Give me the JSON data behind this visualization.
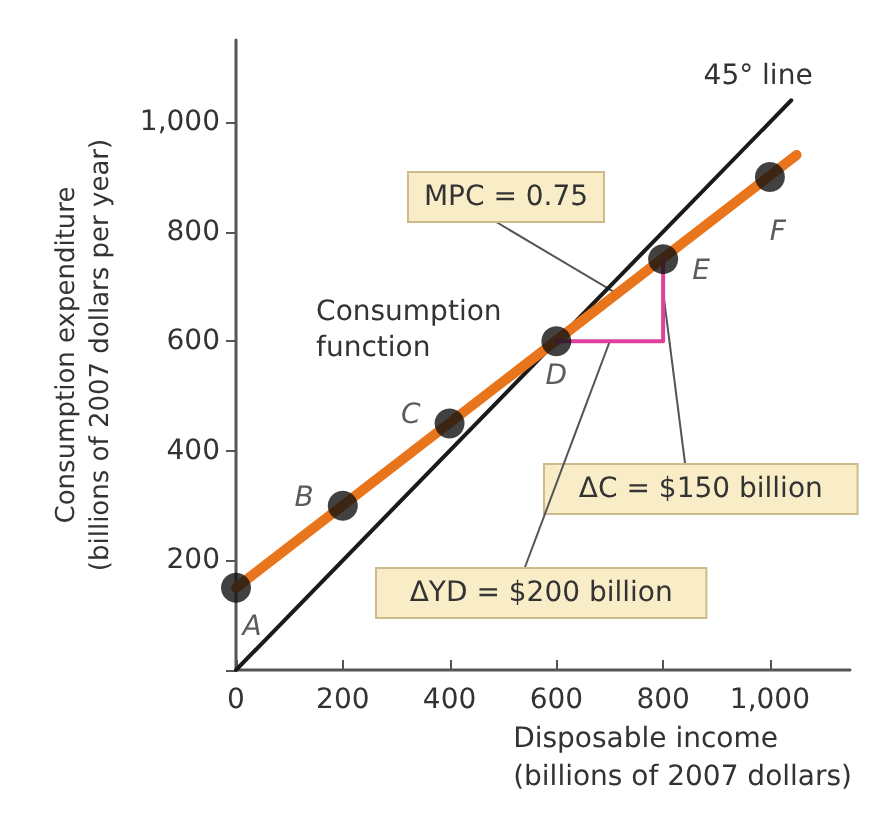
{
  "chart_data": {
    "type": "line",
    "xlabel": "Disposable income\n(billions of 2007 dollars)",
    "ylabel": "Consumption expenditure\n(billions of 2007 dollars per year)",
    "xlim": [
      0,
      1150
    ],
    "ylim": [
      0,
      1150
    ],
    "xticks": [
      0,
      200,
      400,
      600,
      800,
      {
        "value": 1000,
        "label": "1,000"
      }
    ],
    "yticks": [
      {
        "value": 0,
        "label": null
      },
      200,
      400,
      600,
      800,
      {
        "value": 1000,
        "label": "1,000"
      }
    ],
    "grid": false,
    "legend": false,
    "marker": "none",
    "line_style": "solid",
    "series": [
      {
        "name": "45° line",
        "color": "#1a1a1a",
        "x": [
          0,
          1040
        ],
        "values": [
          0,
          1040
        ]
      },
      {
        "name": "Consumption function",
        "color": "#e8741c",
        "x": [
          0,
          1050
        ],
        "values": [
          150,
          940
        ]
      },
      {
        "color": "#e0409a",
        "x": [
          600,
          800,
          800
        ],
        "values": [
          600,
          600,
          750
        ]
      },
      {
        "type": "scatter",
        "marker": "circle",
        "color": "#111111",
        "x": [
          0,
          200,
          400,
          600,
          800,
          1000
        ],
        "values": [
          150,
          300,
          450,
          600,
          750,
          900
        ],
        "value_labels": [
          "A",
          "B",
          "C",
          "D",
          "E",
          "F"
        ]
      }
    ],
    "annotations": [
      {
        "text": "MPC = 0.75",
        "x": 715,
        "y": 686
      },
      {
        "text": "ΔC = $150 billion",
        "x": 800,
        "y": 690
      },
      {
        "text": "ΔYD = $200 billion",
        "x": 700,
        "y": 600
      }
    ]
  }
}
